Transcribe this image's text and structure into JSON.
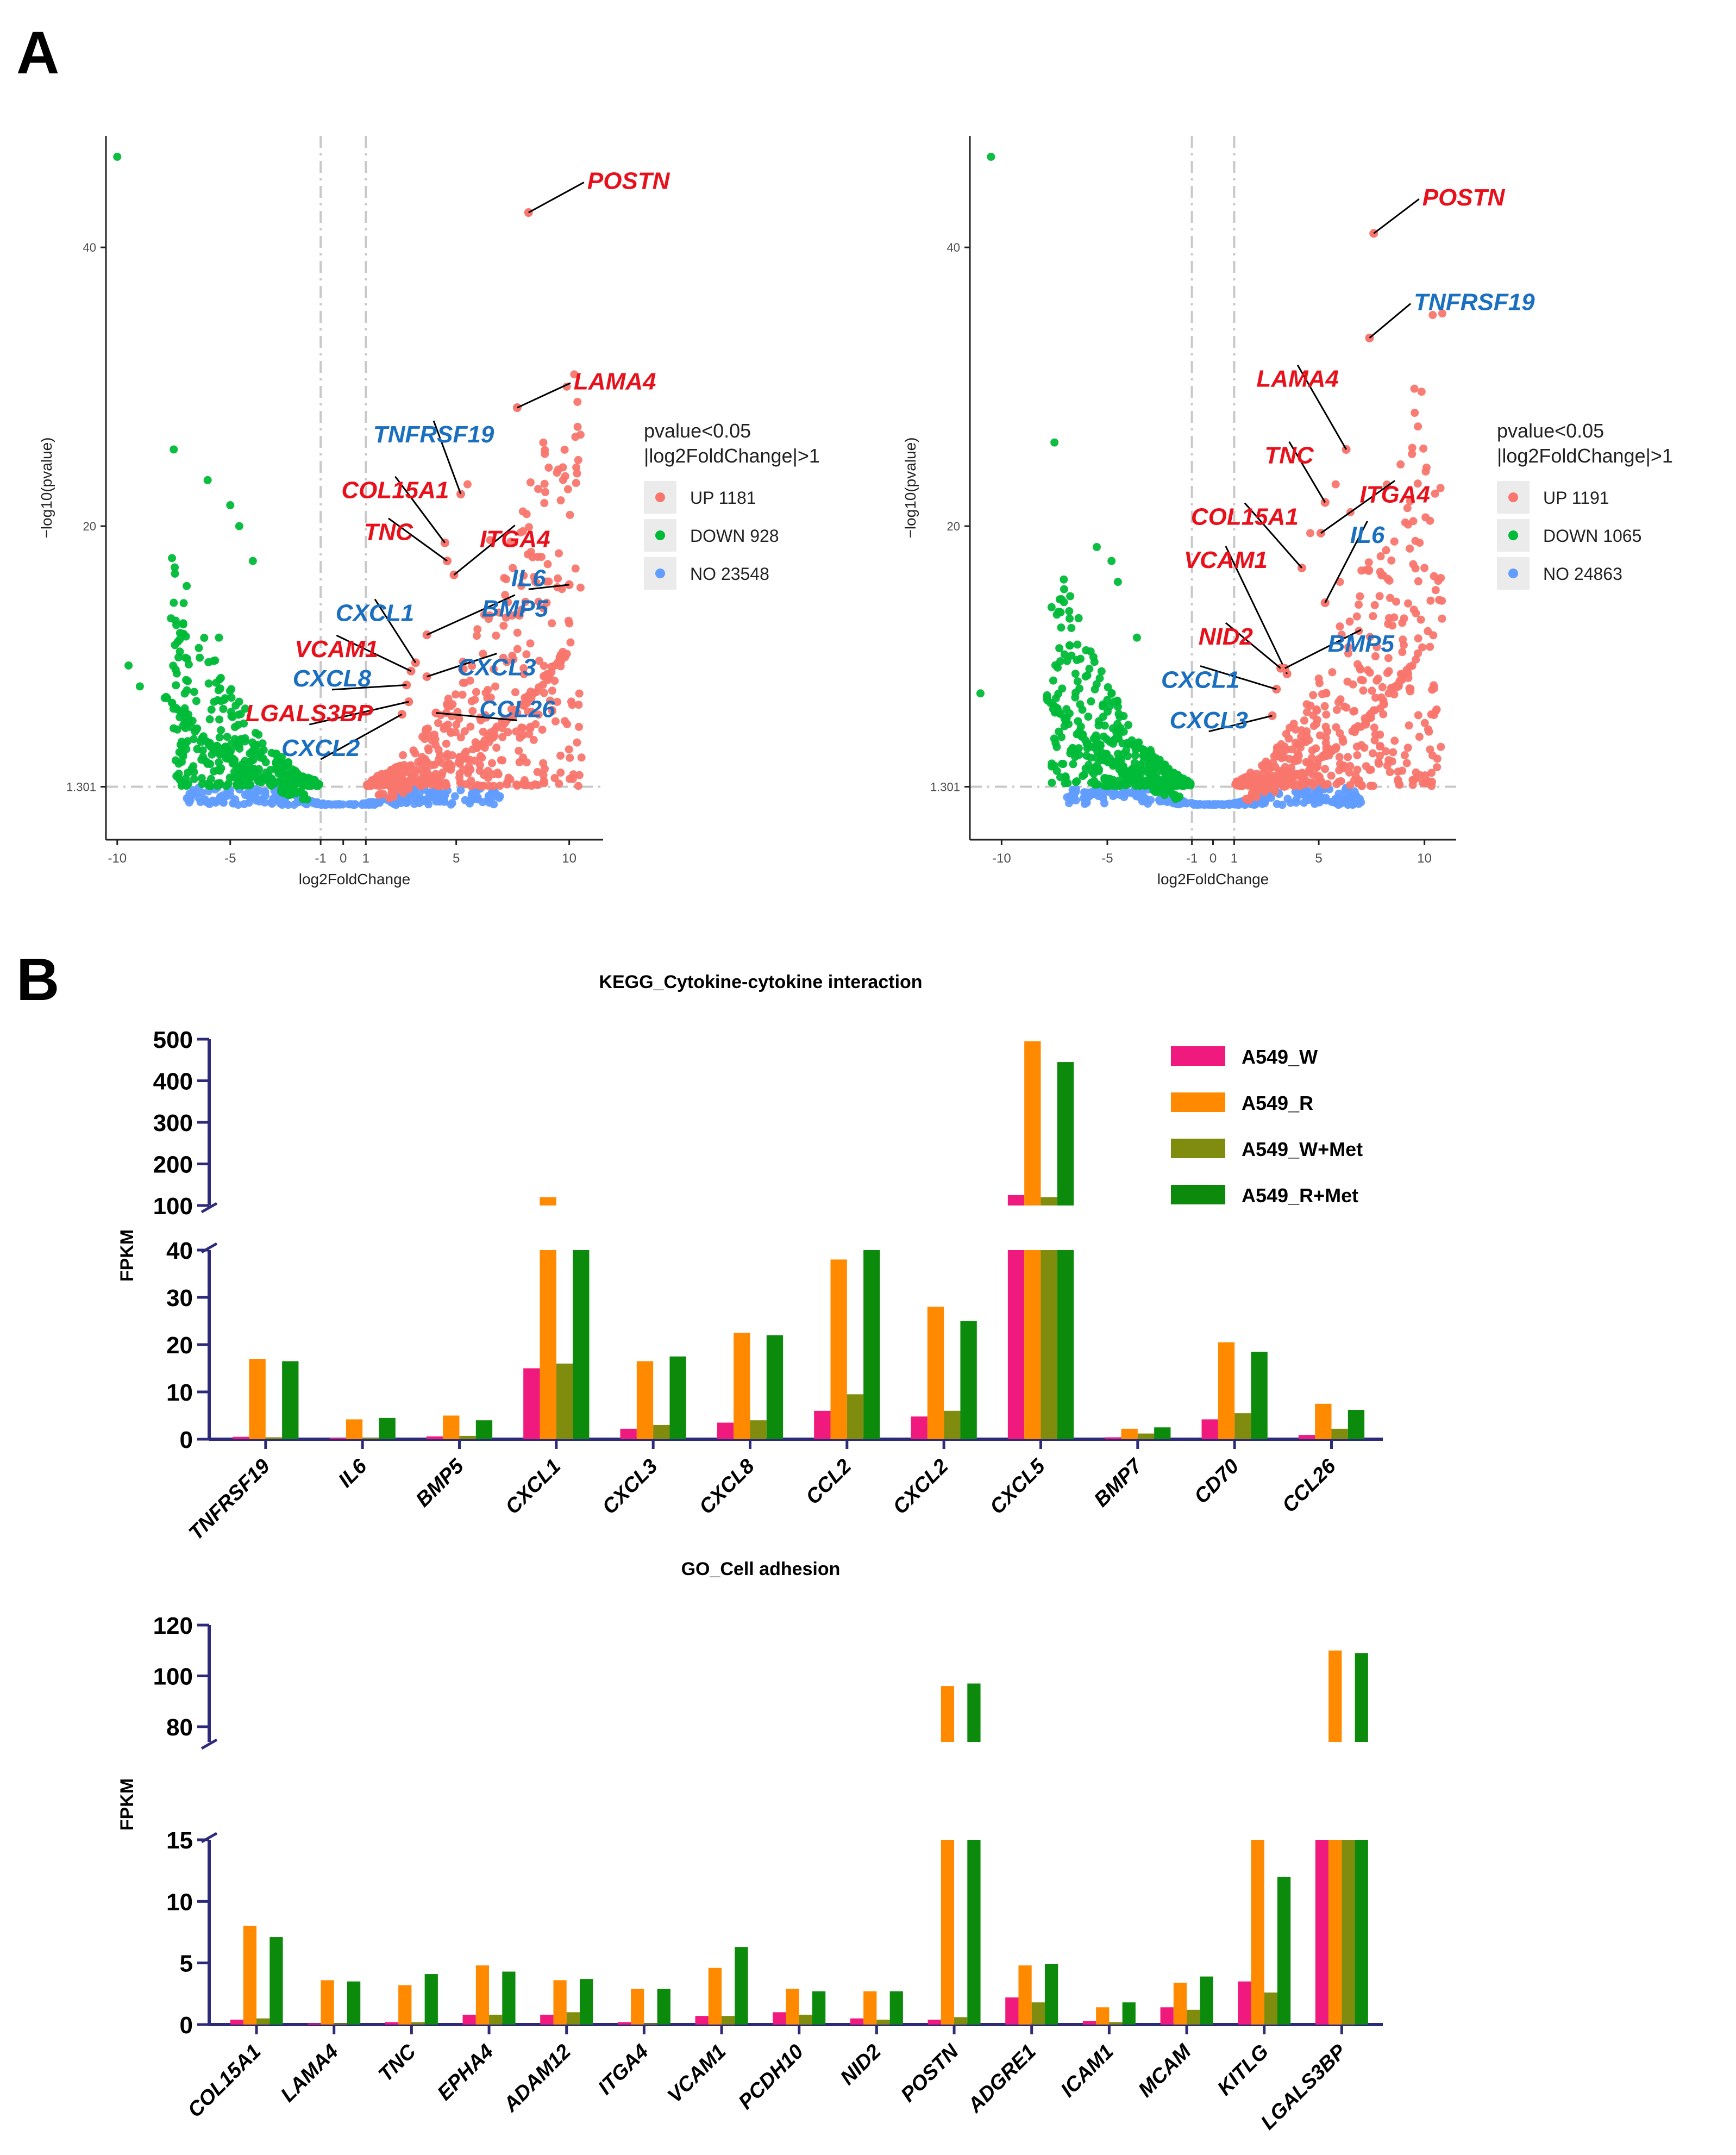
{
  "panels": {
    "a": "A",
    "b": "B"
  },
  "colors": {
    "up": "#F8766D",
    "down": "#00BA38",
    "no": "#619CFF",
    "label_up": "#E8101B",
    "label_down": "#1A6FC0",
    "w": "#F0197E",
    "r": "#FF8A00",
    "w_met": "#7F8C0E",
    "r_met": "#0C8A0C"
  },
  "chart_data": [
    {
      "id": "volcano-1",
      "type": "scatter",
      "title": "",
      "xlabel": "log2FoldChange",
      "ylabel": "−log10(pvalue)",
      "xlim": [
        -10.5,
        11.5
      ],
      "ylim": [
        -2.5,
        48
      ],
      "x_ticks": [
        -10,
        -5,
        -1,
        0,
        1,
        5,
        10
      ],
      "x_tick_labels": [
        "-10",
        "-5",
        "-1",
        "0",
        "1",
        "5",
        "10"
      ],
      "y_ticks": [
        1.301,
        20,
        40
      ],
      "y_tick_labels": [
        "1.301",
        "20",
        "40"
      ],
      "threshold_x": [
        -1,
        1
      ],
      "threshold_y": 1.301,
      "legend": {
        "title": [
          "pvalue<0.05",
          "|log2FoldChange|>1"
        ],
        "entries": [
          {
            "label": "UP 1181",
            "class": "up"
          },
          {
            "label": "DOWN 928",
            "class": "down"
          },
          {
            "label": "NO 23548",
            "class": "no"
          }
        ]
      },
      "generated": {
        "max_up": 9.5,
        "max_down": 6.6,
        "edge_up": 8.5,
        "edge_down": 6.5,
        "count_up": 420,
        "count_down": 330
      },
      "extra_points": [
        {
          "x": -10,
          "y": 46.5,
          "class": "down"
        },
        {
          "x": -7.5,
          "y": 25.5,
          "class": "down"
        },
        {
          "x": -6,
          "y": 23.3,
          "class": "down"
        },
        {
          "x": -5,
          "y": 21.5,
          "class": "down"
        },
        {
          "x": -4.6,
          "y": 20.0,
          "class": "down"
        },
        {
          "x": -7.5,
          "y": 14.5,
          "class": "down"
        },
        {
          "x": -9.5,
          "y": 10.0,
          "class": "down"
        },
        {
          "x": -9.0,
          "y": 8.5,
          "class": "down"
        },
        {
          "x": -5.5,
          "y": 12.0,
          "class": "down"
        },
        {
          "x": -4.0,
          "y": 17.5,
          "class": "down"
        },
        {
          "x": 5.5,
          "y": 23.0,
          "class": "up"
        },
        {
          "x": 6.5,
          "y": 19.0,
          "class": "up"
        },
        {
          "x": 7.5,
          "y": 17.0,
          "class": "up"
        },
        {
          "x": 8.5,
          "y": 16.0,
          "class": "up"
        },
        {
          "x": 9.0,
          "y": 14.5,
          "class": "up"
        }
      ],
      "labels": [
        {
          "gene": "POSTN",
          "x": 8.2,
          "y": 42.5,
          "class": "up",
          "tx": 10.8,
          "ty": 44.2,
          "anchor": "start"
        },
        {
          "gene": "LAMA4",
          "x": 7.7,
          "y": 28.5,
          "class": "up",
          "tx": 10.2,
          "ty": 29.8,
          "anchor": "start"
        },
        {
          "gene": "TNFRSF19",
          "x": 5.2,
          "y": 22.3,
          "class": "down",
          "tx": 4.0,
          "ty": 26.0,
          "anchor": "middle"
        },
        {
          "gene": "COL15A1",
          "x": 4.5,
          "y": 18.8,
          "class": "up",
          "tx": 2.3,
          "ty": 22.0,
          "anchor": "middle"
        },
        {
          "gene": "TNC",
          "x": 4.6,
          "y": 17.5,
          "class": "up",
          "tx": 2.0,
          "ty": 19.0,
          "anchor": "middle"
        },
        {
          "gene": "ITGA4",
          "x": 4.9,
          "y": 16.5,
          "class": "up",
          "tx": 7.6,
          "ty": 18.5,
          "anchor": "middle"
        },
        {
          "gene": "IL6",
          "x": 10.0,
          "y": 15.8,
          "class": "down",
          "tx": 8.2,
          "ty": 15.7,
          "anchor": "middle"
        },
        {
          "gene": "CXCL1",
          "x": 3.2,
          "y": 10.2,
          "class": "down",
          "tx": 1.4,
          "ty": 13.2,
          "anchor": "middle"
        },
        {
          "gene": "BMP5",
          "x": 3.7,
          "y": 12.2,
          "class": "down",
          "tx": 7.6,
          "ty": 13.5,
          "anchor": "middle"
        },
        {
          "gene": "VCAM1",
          "x": 3.0,
          "y": 9.6,
          "class": "up",
          "tx": -0.3,
          "ty": 10.6,
          "anchor": "middle"
        },
        {
          "gene": "CXCL8",
          "x": 2.8,
          "y": 8.6,
          "class": "down",
          "tx": -0.5,
          "ty": 8.5,
          "anchor": "middle"
        },
        {
          "gene": "CXCL3",
          "x": 3.7,
          "y": 9.2,
          "class": "down",
          "tx": 6.8,
          "ty": 9.3,
          "anchor": "middle"
        },
        {
          "gene": "LGALS3BP",
          "x": 2.9,
          "y": 7.4,
          "class": "up",
          "tx": -1.5,
          "ty": 6.0,
          "anchor": "middle"
        },
        {
          "gene": "CCL26",
          "x": 4.1,
          "y": 6.6,
          "class": "down",
          "tx": 7.7,
          "ty": 6.3,
          "anchor": "middle"
        },
        {
          "gene": "CXCL2",
          "x": 2.6,
          "y": 6.5,
          "class": "down",
          "tx": -1.0,
          "ty": 3.5,
          "anchor": "middle"
        }
      ]
    },
    {
      "id": "volcano-2",
      "type": "scatter",
      "title": "",
      "xlabel": "log2FoldChange",
      "ylabel": "−log10(pvalue)",
      "xlim": [
        -11.5,
        11.5
      ],
      "ylim": [
        -2.5,
        48
      ],
      "x_ticks": [
        -10,
        -5,
        -1,
        0,
        1,
        5,
        10
      ],
      "x_tick_labels": [
        "-10",
        "-5",
        "-1",
        "0",
        "1",
        "5",
        "10"
      ],
      "y_ticks": [
        1.301,
        20,
        40
      ],
      "y_tick_labels": [
        "1.301",
        "20",
        "40"
      ],
      "threshold_x": [
        -1,
        1
      ],
      "threshold_y": 1.301,
      "legend": {
        "title": [
          "pvalue<0.05",
          "|log2FoldChange|>1"
        ],
        "entries": [
          {
            "label": "UP 1191",
            "class": "up"
          },
          {
            "label": "DOWN 1065",
            "class": "down"
          },
          {
            "label": "NO 24863",
            "class": "no"
          }
        ]
      },
      "generated": {
        "max_up": 9.8,
        "max_down": 6.6,
        "edge_up": 8.5,
        "edge_down": 6.5,
        "count_up": 420,
        "count_down": 360
      },
      "extra_points": [
        {
          "x": -10.5,
          "y": 46.5,
          "class": "down"
        },
        {
          "x": -7.5,
          "y": 26.0,
          "class": "down"
        },
        {
          "x": -5.5,
          "y": 18.5,
          "class": "down"
        },
        {
          "x": -4.8,
          "y": 17.5,
          "class": "down"
        },
        {
          "x": -4.5,
          "y": 16.0,
          "class": "down"
        },
        {
          "x": -11.0,
          "y": 8.0,
          "class": "down"
        },
        {
          "x": -3.6,
          "y": 12.0,
          "class": "down"
        },
        {
          "x": 5.8,
          "y": 23.0,
          "class": "up"
        },
        {
          "x": 6.5,
          "y": 21.0,
          "class": "up"
        },
        {
          "x": 10.0,
          "y": 17.0,
          "class": "up"
        },
        {
          "x": 6.0,
          "y": 16.0,
          "class": "up"
        },
        {
          "x": 4.6,
          "y": 19.5,
          "class": "up"
        }
      ],
      "labels": [
        {
          "gene": "POSTN",
          "x": 7.6,
          "y": 41.0,
          "class": "up",
          "tx": 9.9,
          "ty": 43.0,
          "anchor": "start"
        },
        {
          "gene": "TNFRSF19",
          "x": 7.4,
          "y": 33.5,
          "class": "down",
          "tx": 9.5,
          "ty": 35.5,
          "anchor": "start"
        },
        {
          "gene": "LAMA4",
          "x": 6.3,
          "y": 25.5,
          "class": "up",
          "tx": 4.0,
          "ty": 30.0,
          "anchor": "middle"
        },
        {
          "gene": "TNC",
          "x": 5.3,
          "y": 21.7,
          "class": "up",
          "tx": 3.6,
          "ty": 24.5,
          "anchor": "middle"
        },
        {
          "gene": "ITGA4",
          "x": 5.1,
          "y": 19.5,
          "class": "up",
          "tx": 8.6,
          "ty": 21.7,
          "anchor": "middle"
        },
        {
          "gene": "COL15A1",
          "x": 4.2,
          "y": 17.0,
          "class": "up",
          "tx": 1.5,
          "ty": 20.1,
          "anchor": "middle"
        },
        {
          "gene": "IL6",
          "x": 5.3,
          "y": 14.5,
          "class": "down",
          "tx": 7.3,
          "ty": 18.8,
          "anchor": "middle"
        },
        {
          "gene": "VCAM1",
          "x": 3.5,
          "y": 9.4,
          "class": "up",
          "tx": 0.6,
          "ty": 17.0,
          "anchor": "middle"
        },
        {
          "gene": "NID2",
          "x": 3.2,
          "y": 9.8,
          "class": "up",
          "tx": 0.6,
          "ty": 11.5,
          "anchor": "middle"
        },
        {
          "gene": "BMP5",
          "x": 3.4,
          "y": 9.8,
          "class": "down",
          "tx": 7.0,
          "ty": 11.0,
          "anchor": "middle"
        },
        {
          "gene": "CXCL1",
          "x": 3.0,
          "y": 8.3,
          "class": "down",
          "tx": -0.6,
          "ty": 8.4,
          "anchor": "middle"
        },
        {
          "gene": "CXCL3",
          "x": 2.8,
          "y": 6.4,
          "class": "down",
          "tx": -0.2,
          "ty": 5.5,
          "anchor": "middle"
        }
      ]
    },
    {
      "id": "bars-kegg",
      "type": "bar",
      "title": "KEGG_Cytokine-cytokine interaction",
      "ylabel": "FPKM",
      "categories": [
        "TNFRSF19",
        "IL6",
        "BMP5",
        "CXCL1",
        "CXCL3",
        "CXCL8",
        "CCL2",
        "CXCL2",
        "CXCL5",
        "BMP7",
        "CD70",
        "CCL26"
      ],
      "series": [
        {
          "name": "A549_W",
          "class": "w",
          "values": [
            0.5,
            0.3,
            0.6,
            15,
            2.2,
            3.5,
            6.0,
            4.8,
            125,
            0.4,
            4.2,
            0.9
          ]
        },
        {
          "name": "A549_R",
          "class": "r",
          "values": [
            17,
            4.2,
            5.0,
            120,
            16.5,
            22.5,
            38,
            28,
            495,
            2.2,
            20.5,
            7.5
          ]
        },
        {
          "name": "A549_W+Met",
          "class": "w_met",
          "values": [
            0.4,
            0.3,
            0.7,
            16,
            3.0,
            4.0,
            9.5,
            6.0,
            120,
            1.2,
            5.5,
            2.2
          ]
        },
        {
          "name": "A549_R+Met",
          "class": "r_met",
          "values": [
            16.5,
            4.5,
            4.0,
            105,
            17.5,
            22,
            40.5,
            25,
            445,
            2.5,
            18.5,
            6.2
          ]
        }
      ],
      "segments": [
        {
          "range": [
            0,
            40
          ],
          "ticks": [
            0,
            10,
            20,
            30,
            40
          ]
        },
        {
          "range": [
            100,
            500
          ],
          "ticks": [
            100,
            200,
            300,
            400,
            500
          ]
        }
      ]
    },
    {
      "id": "bars-go",
      "type": "bar",
      "title": "GO_Cell adhesion",
      "ylabel": "FPKM",
      "categories": [
        "COL15A1",
        "LAMA4",
        "TNC",
        "EPHA4",
        "ADAM12",
        "ITGA4",
        "VCAM1",
        "PCDH10",
        "NID2",
        "POSTN",
        "ADGRE1",
        "ICAM1",
        "MCAM",
        "KITLG",
        "LGALS3BP"
      ],
      "series": [
        {
          "name": "A549_W",
          "class": "w",
          "values": [
            0.4,
            0.1,
            0.2,
            0.8,
            0.8,
            0.2,
            0.7,
            1.0,
            0.5,
            0.4,
            2.2,
            0.3,
            1.4,
            3.5,
            18
          ]
        },
        {
          "name": "A549_R",
          "class": "r",
          "values": [
            8.0,
            3.6,
            3.2,
            4.8,
            3.6,
            2.9,
            4.6,
            2.9,
            2.7,
            96,
            4.8,
            1.4,
            3.4,
            15,
            110
          ]
        },
        {
          "name": "A549_W+Met",
          "class": "w_met",
          "values": [
            0.5,
            0.1,
            0.2,
            0.8,
            1.0,
            0.1,
            0.7,
            0.8,
            0.4,
            0.6,
            1.8,
            0.2,
            1.2,
            2.6,
            18
          ]
        },
        {
          "name": "A549_R+Met",
          "class": "r_met",
          "values": [
            7.1,
            3.5,
            4.1,
            4.3,
            3.7,
            2.9,
            6.3,
            2.7,
            2.7,
            97,
            4.9,
            1.8,
            3.9,
            12,
            109
          ]
        }
      ],
      "segments": [
        {
          "range": [
            0,
            15
          ],
          "ticks": [
            0,
            5,
            10,
            15
          ]
        },
        {
          "range": [
            74,
            120
          ],
          "ticks": [
            80,
            100,
            120
          ]
        }
      ]
    }
  ]
}
